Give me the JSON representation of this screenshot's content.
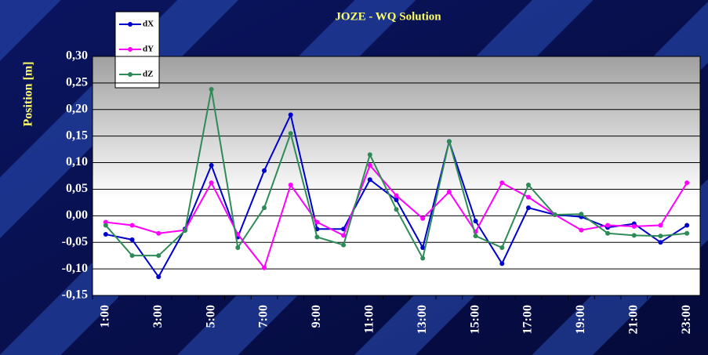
{
  "chart_data": {
    "type": "line",
    "title": "JOZE - WQ Solution",
    "y_label": "Position [m]",
    "categories": [
      "1:00",
      null,
      "3:00",
      null,
      "5:00",
      null,
      "7:00",
      null,
      "9:00",
      null,
      "11:00",
      null,
      "13:00",
      null,
      "15:00",
      null,
      "17:00",
      null,
      "19:00",
      null,
      "21:00",
      null,
      "23:00"
    ],
    "series": [
      {
        "name": "dX",
        "color": "#0000cc",
        "values": [
          -0.035,
          -0.045,
          -0.115,
          -0.025,
          0.095,
          -0.04,
          0.085,
          0.19,
          -0.025,
          -0.025,
          0.068,
          0.03,
          -0.06,
          0.14,
          -0.01,
          -0.09,
          0.015,
          0.002,
          -0.002,
          -0.022,
          -0.015,
          -0.05,
          -0.018
        ]
      },
      {
        "name": "dY",
        "color": "#ff00ff",
        "values": [
          -0.012,
          -0.018,
          -0.033,
          -0.027,
          0.062,
          -0.035,
          -0.098,
          0.058,
          -0.012,
          -0.037,
          0.095,
          0.038,
          -0.005,
          0.045,
          -0.03,
          0.062,
          0.035,
          0.002,
          -0.027,
          -0.018,
          -0.02,
          -0.018,
          0.062
        ]
      },
      {
        "name": "dZ",
        "color": "#2e8b57",
        "values": [
          -0.018,
          -0.075,
          -0.075,
          -0.028,
          0.238,
          -0.06,
          0.015,
          0.155,
          -0.04,
          -0.055,
          0.115,
          0.012,
          -0.08,
          0.14,
          -0.038,
          -0.06,
          0.058,
          0.002,
          0.003,
          -0.033,
          -0.037,
          -0.038,
          -0.033
        ]
      }
    ],
    "ylim": [
      -0.15,
      0.3
    ],
    "yticks": [
      {
        "value": -0.15,
        "label": "-0,15"
      },
      {
        "value": -0.1,
        "label": "-0,10"
      },
      {
        "value": -0.05,
        "label": "-0,05"
      },
      {
        "value": 0,
        "label": "0,00"
      },
      {
        "value": 0.05,
        "label": "0,05"
      },
      {
        "value": 0.1,
        "label": "0,10"
      },
      {
        "value": 0.15,
        "label": "0,15"
      },
      {
        "value": 0.2,
        "label": "0,20"
      },
      {
        "value": 0.25,
        "label": "0,25"
      },
      {
        "value": 0.3,
        "label": "0,30"
      }
    ],
    "grid": true
  }
}
